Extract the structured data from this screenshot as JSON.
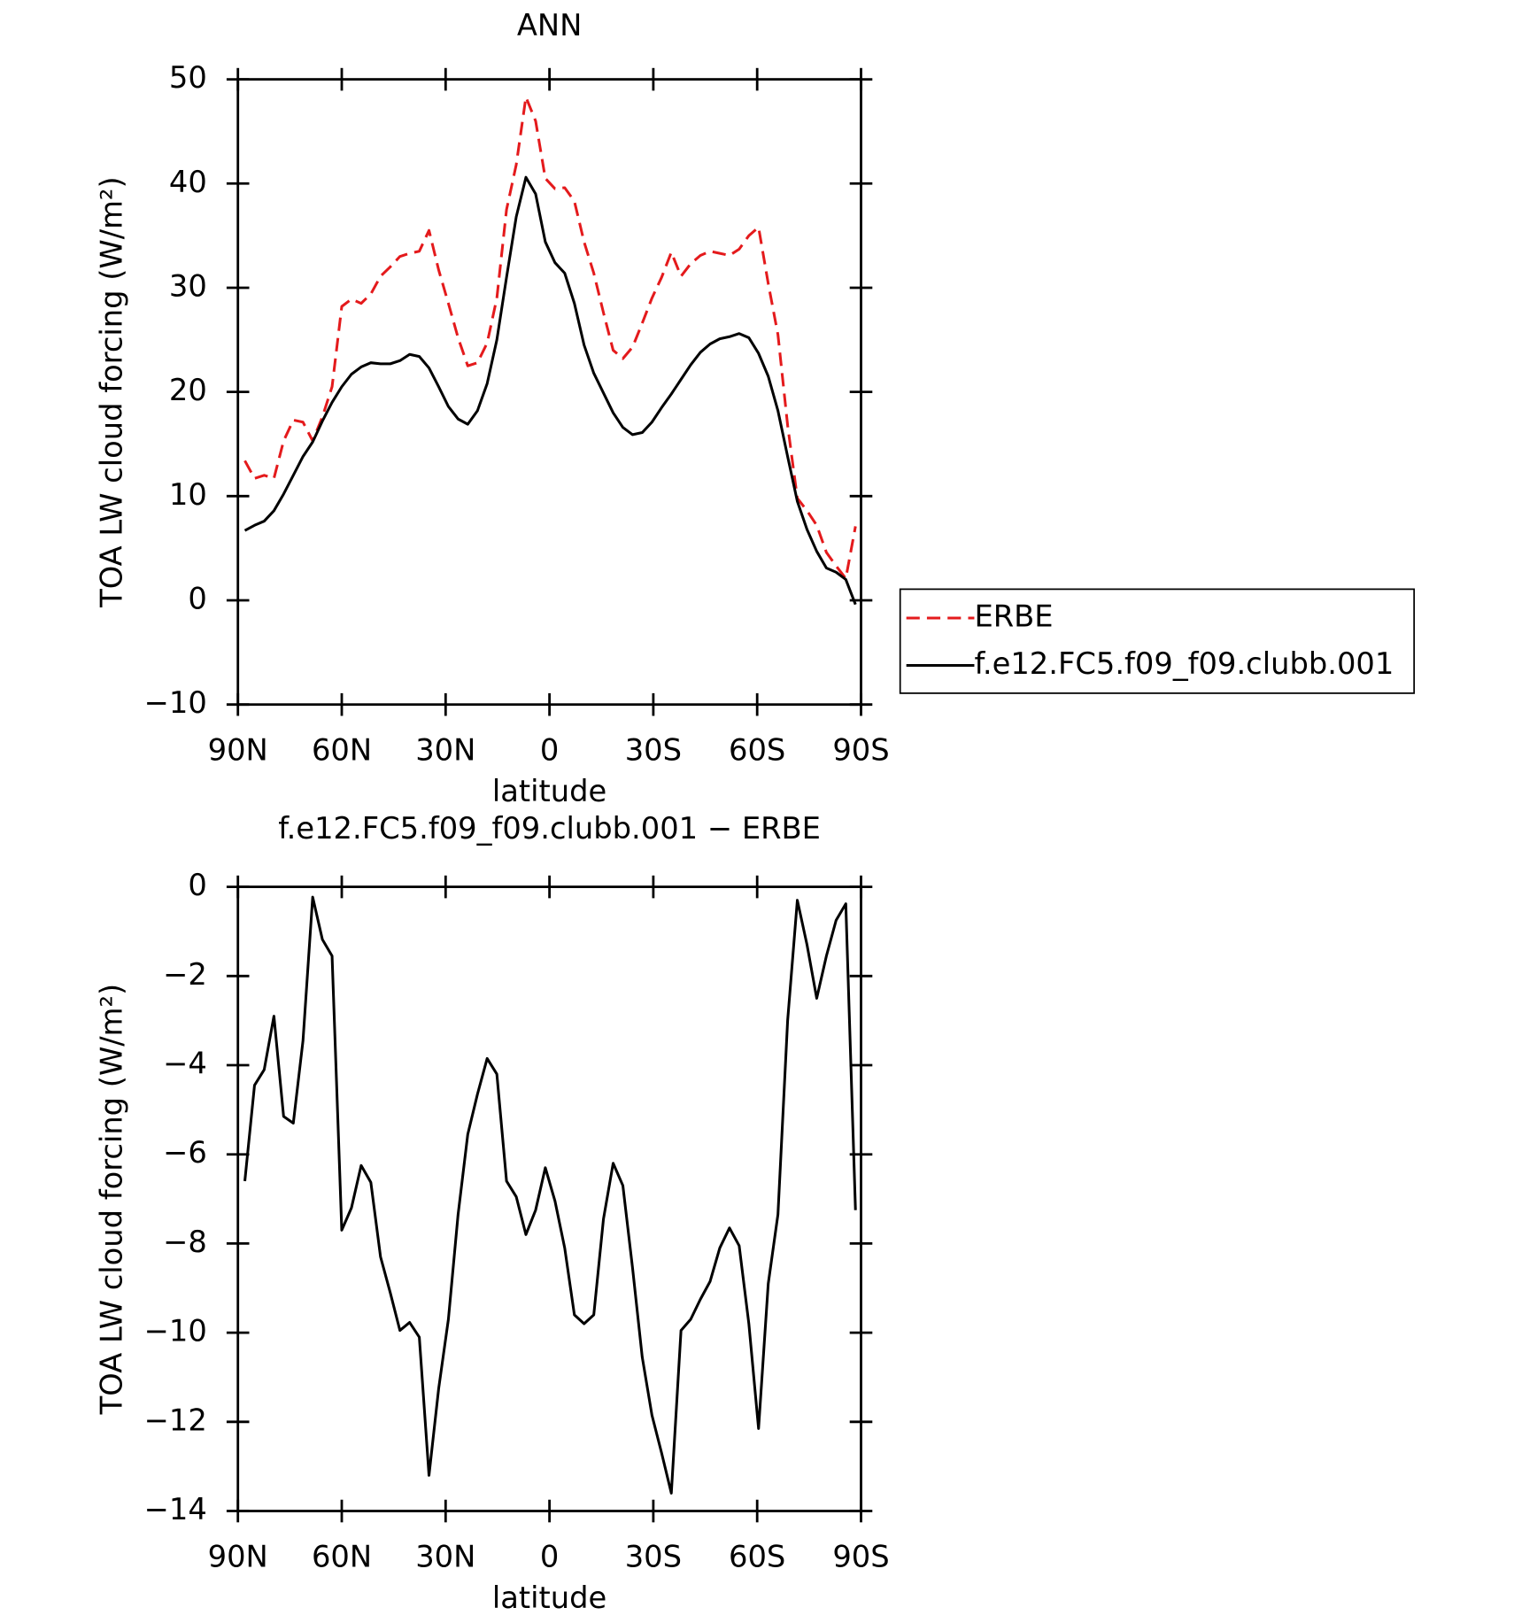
{
  "chart_data": [
    {
      "type": "line",
      "title": "ANN",
      "xlabel": "latitude",
      "ylabel": "TOA LW cloud forcing (W/m²)",
      "x": [
        88,
        85.2,
        82.4,
        79.6,
        76.8,
        74,
        71.2,
        68.4,
        65.6,
        62.8,
        60,
        57.2,
        54.4,
        51.6,
        48.8,
        46,
        43.2,
        40.4,
        37.6,
        34.8,
        32,
        29.2,
        26.4,
        23.6,
        20.8,
        18,
        15.2,
        12.4,
        9.6,
        6.8,
        4,
        1.2,
        -1.6,
        -4.4,
        -7.2,
        -10,
        -12.8,
        -15.6,
        -18.4,
        -21.2,
        -24,
        -26.8,
        -29.6,
        -32.4,
        -35.2,
        -38,
        -40.8,
        -43.6,
        -46.4,
        -49.2,
        -52,
        -54.8,
        -57.6,
        -60.4,
        -63.2,
        -66,
        -68.8,
        -71.6,
        -74.4,
        -77.2,
        -80,
        -82.8,
        -85.6,
        -88.4
      ],
      "series": [
        {
          "name": "ERBE",
          "color": "#e41a1c",
          "linestyle": "dashed",
          "values": [
            13.4,
            11.7,
            12.0,
            11.7,
            15.3,
            17.3,
            17.1,
            15.3,
            17.6,
            20.5,
            28.2,
            28.9,
            28.5,
            29.4,
            31.1,
            32.0,
            33.0,
            33.3,
            33.5,
            35.5,
            31.7,
            28.5,
            25.2,
            22.5,
            22.8,
            24.7,
            29.0,
            37.5,
            41.8,
            48.3,
            46.0,
            40.5,
            39.5,
            39.6,
            38.3,
            34.4,
            31.4,
            27.6,
            24.0,
            23.2,
            24.3,
            26.6,
            29.0,
            31.0,
            33.4,
            31.1,
            32.3,
            33.1,
            33.5,
            33.3,
            33.1,
            33.7,
            35.0,
            35.8,
            30.4,
            25.5,
            16.8,
            9.8,
            8.6,
            7.2,
            4.6,
            3.3,
            2.1,
            7.1
          ]
        },
        {
          "name": "f.e12.FC5.f09_f09.clubb.001",
          "color": "#000000",
          "linestyle": "solid",
          "values": [
            6.7,
            7.2,
            7.6,
            8.6,
            10.2,
            12.0,
            13.8,
            15.2,
            17.2,
            19.0,
            20.5,
            21.7,
            22.4,
            22.8,
            22.7,
            22.7,
            23.0,
            23.6,
            23.4,
            22.3,
            20.5,
            18.6,
            17.4,
            16.9,
            18.2,
            20.8,
            25.0,
            31.0,
            36.8,
            40.6,
            39.0,
            34.4,
            32.4,
            31.4,
            28.5,
            24.5,
            21.8,
            19.9,
            18.0,
            16.6,
            15.9,
            16.1,
            17.1,
            18.5,
            19.8,
            21.2,
            22.6,
            23.8,
            24.6,
            25.1,
            25.3,
            25.6,
            25.2,
            23.7,
            21.5,
            18.2,
            13.8,
            9.5,
            6.8,
            4.7,
            3.1,
            2.7,
            2.0,
            -0.4
          ]
        }
      ],
      "xlim": [
        90,
        -90
      ],
      "xticks": [
        {
          "value": 90,
          "label": "90N"
        },
        {
          "value": 60,
          "label": "60N"
        },
        {
          "value": 30,
          "label": "30N"
        },
        0,
        {
          "value": -30,
          "label": "30S"
        },
        {
          "value": -60,
          "label": "60S"
        },
        {
          "value": -90,
          "label": "90S"
        }
      ],
      "ylim": [
        -10,
        50
      ],
      "yticks": [
        {
          "value": -10,
          "label": "−10"
        },
        0,
        10,
        20,
        30,
        40,
        50
      ],
      "legend": "right"
    },
    {
      "type": "line",
      "title": "f.e12.FC5.f09_f09.clubb.001 − ERBE",
      "xlabel": "latitude",
      "ylabel": "TOA LW cloud forcing (W/m²)",
      "x": [
        88,
        85.2,
        82.4,
        79.6,
        76.8,
        74,
        71.2,
        68.4,
        65.6,
        62.8,
        60,
        57.2,
        54.4,
        51.6,
        48.8,
        46,
        43.2,
        40.4,
        37.6,
        34.8,
        32,
        29.2,
        26.4,
        23.6,
        20.8,
        18,
        15.2,
        12.4,
        9.6,
        6.8,
        4,
        1.2,
        -1.6,
        -4.4,
        -7.2,
        -10,
        -12.8,
        -15.6,
        -18.4,
        -21.2,
        -24,
        -26.8,
        -29.6,
        -32.4,
        -35.2,
        -38,
        -40.8,
        -43.6,
        -46.4,
        -49.2,
        -52,
        -54.8,
        -57.6,
        -60.4,
        -63.2,
        -66,
        -68.8,
        -71.6,
        -74.4,
        -77.2,
        -80,
        -82.8,
        -85.6,
        -88.4
      ],
      "series": [
        {
          "color": "#000000",
          "linestyle": "solid",
          "values": [
            -6.6,
            -4.45,
            -4.1,
            -2.9,
            -5.15,
            -5.3,
            -3.45,
            -0.23,
            -1.18,
            -1.55,
            -7.7,
            -7.2,
            -6.25,
            -6.63,
            -8.3,
            -9.1,
            -9.95,
            -9.77,
            -10.1,
            -13.2,
            -11.25,
            -9.7,
            -7.35,
            -5.55,
            -4.65,
            -3.85,
            -4.2,
            -6.6,
            -6.95,
            -7.8,
            -7.25,
            -6.3,
            -7.05,
            -8.1,
            -9.6,
            -9.8,
            -9.6,
            -7.45,
            -6.2,
            -6.7,
            -8.55,
            -10.55,
            -11.85,
            -12.7,
            -13.6,
            -9.95,
            -9.7,
            -9.25,
            -8.85,
            -8.1,
            -7.65,
            -8.05,
            -9.8,
            -12.15,
            -8.9,
            -7.35,
            -3.0,
            -0.3,
            -1.3,
            -2.5,
            -1.55,
            -0.75,
            -0.38,
            -7.25
          ]
        }
      ],
      "xlim": [
        90,
        -90
      ],
      "xticks": [
        {
          "value": 90,
          "label": "90N"
        },
        {
          "value": 60,
          "label": "60N"
        },
        {
          "value": 30,
          "label": "30N"
        },
        0,
        {
          "value": -30,
          "label": "30S"
        },
        {
          "value": -60,
          "label": "60S"
        },
        {
          "value": -90,
          "label": "90S"
        }
      ],
      "ylim": [
        -14,
        0
      ],
      "yticks": [
        {
          "value": -14,
          "label": "−14"
        },
        {
          "value": -12,
          "label": "−12"
        },
        {
          "value": -10,
          "label": "−10"
        },
        {
          "value": -8,
          "label": "−8"
        },
        {
          "value": -6,
          "label": "−6"
        },
        {
          "value": -4,
          "label": "−4"
        },
        {
          "value": -2,
          "label": "−2"
        },
        0
      ]
    }
  ]
}
